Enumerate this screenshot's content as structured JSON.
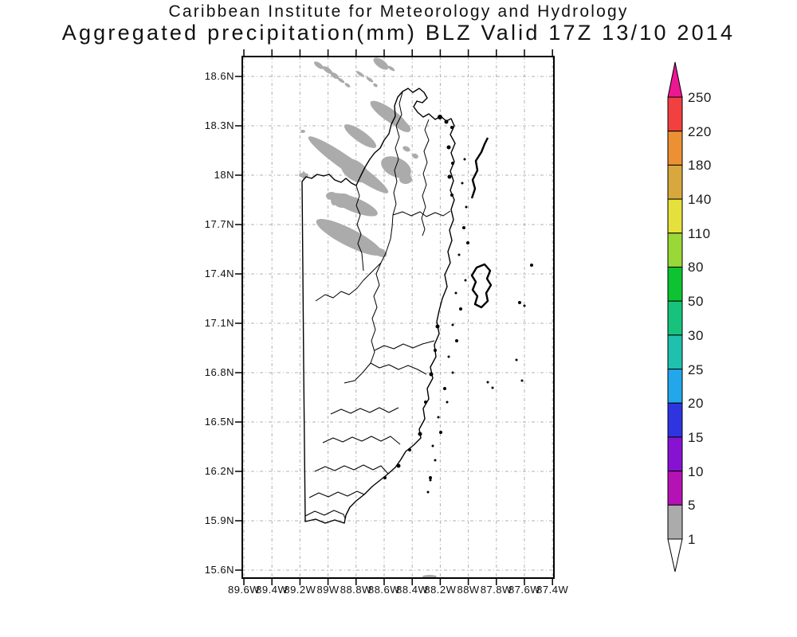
{
  "title": {
    "line1": "Caribbean Institute for Meteorology and Hydrology",
    "line2": "Aggregated precipitation(mm) BLZ Valid 17Z 13/10 2014"
  },
  "map_plot": {
    "region": "BLZ",
    "y_axis_labels": [
      "18.6N",
      "18.3N",
      "18N",
      "17.7N",
      "17.4N",
      "17.1N",
      "16.8N",
      "16.5N",
      "16.2N",
      "15.9N",
      "15.6N"
    ],
    "x_axis_labels": [
      "89.6W",
      "89.4W",
      "89.2W",
      "89W",
      "88.8W",
      "88.6W",
      "88.4W",
      "88.2W",
      "88W",
      "87.8W",
      "87.6W",
      "87.4W"
    ],
    "grid_color": "#B0B0B0",
    "outline_color": "#000000",
    "shaded_regions": [
      {
        "value_range": "1-5 mm",
        "color": "#ABABAB",
        "description": "diagonal precipitation bands over northwest Belize and adjacent Guatemala/Mexico border area"
      }
    ]
  },
  "colorbar": {
    "unit": "mm",
    "tick_labels": [
      "250",
      "220",
      "180",
      "140",
      "110",
      "80",
      "50",
      "30",
      "25",
      "20",
      "15",
      "10",
      "5",
      "1"
    ],
    "segment_colors_top_to_bottom": [
      "#F24040",
      "#EC9133",
      "#D8A83E",
      "#E6E03D",
      "#9AD838",
      "#0DC331",
      "#17C37C",
      "#1FC0AE",
      "#23A7EB",
      "#2E35E0",
      "#8712D1",
      "#B512B5",
      "#ABABAB"
    ],
    "arrow_top_color": "#EC1792",
    "arrow_bottom_color": "#FFFFFF",
    "label_color": "#1a1a1a"
  }
}
